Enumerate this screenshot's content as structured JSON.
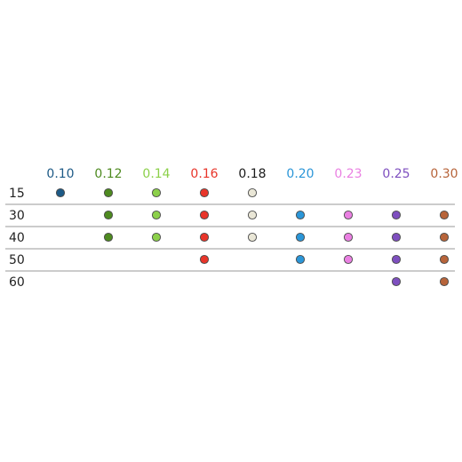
{
  "chart_data": {
    "type": "table",
    "columns": [
      {
        "label": "0.10",
        "color": "#1d5a86"
      },
      {
        "label": "0.12",
        "color": "#4e8a20"
      },
      {
        "label": "0.14",
        "color": "#8cd04a"
      },
      {
        "label": "0.16",
        "color": "#e8352a"
      },
      {
        "label": "0.18",
        "color": "#e9e6d6",
        "label_color": "#1a1a1a"
      },
      {
        "label": "0.20",
        "color": "#2b96d8"
      },
      {
        "label": "0.23",
        "color": "#ea80e2"
      },
      {
        "label": "0.25",
        "color": "#7e4fbf"
      },
      {
        "label": "0.30",
        "color": "#b7643a"
      }
    ],
    "rows": [
      {
        "label": "15",
        "available": [
          "0.10",
          "0.12",
          "0.14",
          "0.16",
          "0.18"
        ]
      },
      {
        "label": "30",
        "available": [
          "0.12",
          "0.14",
          "0.16",
          "0.18",
          "0.20",
          "0.23",
          "0.25",
          "0.30"
        ]
      },
      {
        "label": "40",
        "available": [
          "0.12",
          "0.14",
          "0.16",
          "0.18",
          "0.20",
          "0.23",
          "0.25",
          "0.30"
        ]
      },
      {
        "label": "50",
        "available": [
          "0.16",
          "0.20",
          "0.23",
          "0.25",
          "0.30"
        ]
      },
      {
        "label": "60",
        "available": [
          "0.25",
          "0.30"
        ]
      }
    ],
    "dividers_between_rows": true
  }
}
